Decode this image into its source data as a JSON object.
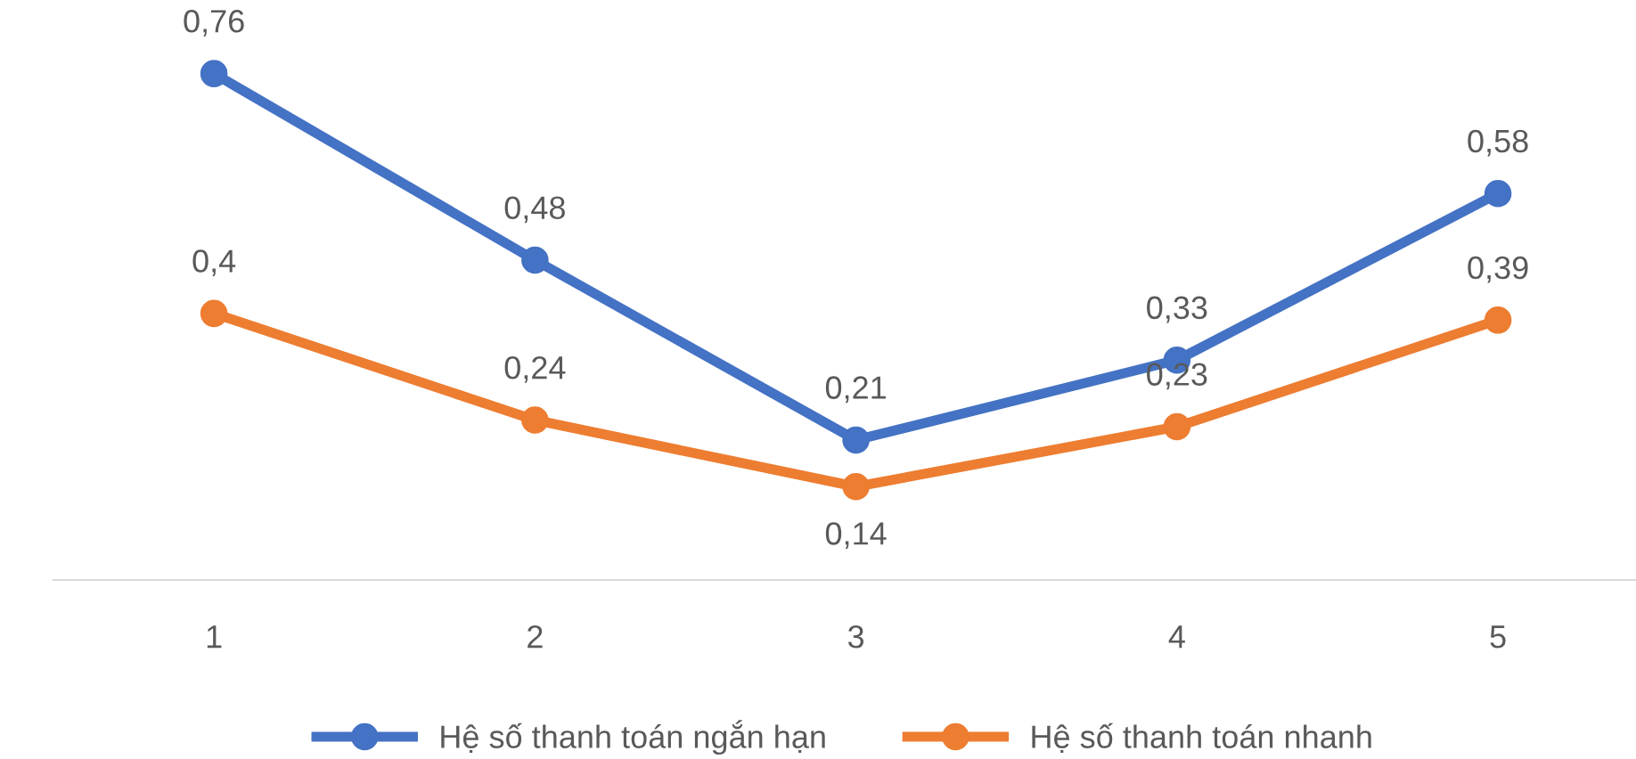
{
  "chart_data": {
    "type": "line",
    "categories": [
      "1",
      "2",
      "3",
      "4",
      "5"
    ],
    "series": [
      {
        "name": "Hệ số thanh toán ngắn hạn",
        "color": "#4472c4",
        "values": [
          0.76,
          0.48,
          0.21,
          0.33,
          0.58
        ],
        "value_labels": [
          "0,76",
          "0,48",
          "0,21",
          "0,33",
          "0,58"
        ]
      },
      {
        "name": "Hệ số thanh toán nhanh",
        "color": "#ed7d31",
        "values": [
          0.4,
          0.24,
          0.14,
          0.23,
          0.39
        ],
        "value_labels": [
          "0,4",
          "0,24",
          "0,14",
          "0,23",
          "0,39"
        ]
      }
    ],
    "tick_labels": "x",
    "grid": false,
    "legend": "bottom",
    "marker": "circle",
    "line_style": "solid"
  }
}
